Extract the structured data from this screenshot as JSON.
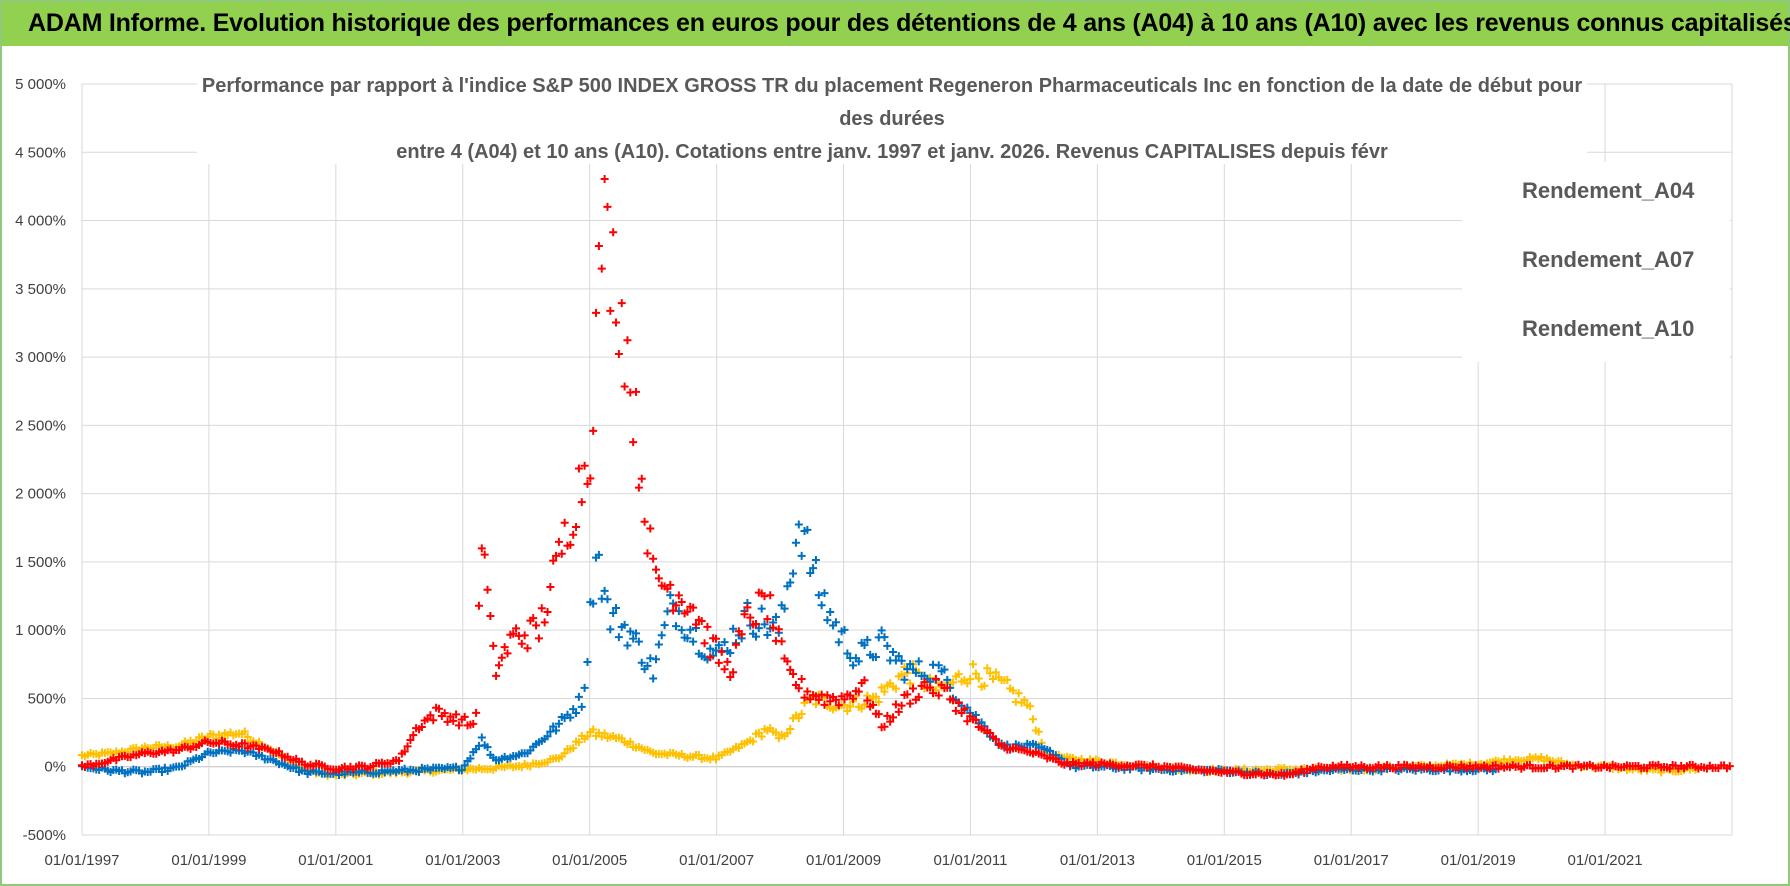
{
  "header": {
    "title": "ADAM Informe. Evolution historique des performances en euros pour des détentions de 4 ans (A04) à 10 ans (A10) avec les revenus connus capitalisés"
  },
  "colors": {
    "header_bg": "#92d050",
    "A04": "#ffc000",
    "A07": "#0070c0",
    "A10": "#ff0000",
    "grid": "#d9d9d9"
  },
  "chart_data": {
    "type": "scatter",
    "title_lines": [
      "Performance par rapport à l'indice S&P 500 INDEX GROSS TR  du placement Regeneron Pharmaceuticals Inc en fonction de la date de début pour",
      "des durées",
      "entre 4 (A04) et 10 ans (A10). Cotations entre janv. 1997 et janv. 2026. Revenus CAPITALISES depuis févr"
    ],
    "xlabel": "",
    "ylabel": "",
    "xlim": [
      1997.0,
      2023.0
    ],
    "ylim": [
      -500,
      5000
    ],
    "y_ticks": [
      5000,
      4500,
      4000,
      3500,
      3000,
      2500,
      2000,
      1500,
      1000,
      500,
      0,
      -500
    ],
    "y_tick_labels": [
      "5 000%",
      "4 500%",
      "4 000%",
      "3 500%",
      "3 000%",
      "2 500%",
      "2 000%",
      "1 500%",
      "1 000%",
      "500%",
      "0%",
      "-500%"
    ],
    "x_ticks": [
      1997,
      1999,
      2001,
      2003,
      2005,
      2007,
      2009,
      2011,
      2013,
      2015,
      2017,
      2019,
      2021
    ],
    "x_tick_labels": [
      "01/01/1997",
      "01/01/1999",
      "01/01/2001",
      "01/01/2003",
      "01/01/2005",
      "01/01/2007",
      "01/01/2009",
      "01/01/2011",
      "01/01/2013",
      "01/01/2015",
      "01/01/2017",
      "01/01/2019",
      "01/01/2021"
    ],
    "legend_position": "top-right",
    "marker": "+",
    "series": [
      {
        "name": "Rendement_A04",
        "color": "#ffc000",
        "x": [
          1997.0,
          1997.5,
          1998.0,
          1998.5,
          1999.0,
          1999.5,
          2000.0,
          2000.5,
          2001.0,
          2001.5,
          2002.0,
          2002.5,
          2003.0,
          2003.5,
          2004.0,
          2004.5,
          2005.0,
          2005.5,
          2006.0,
          2006.5,
          2007.0,
          2007.5,
          2007.8,
          2008.0,
          2008.5,
          2009.0,
          2009.5,
          2010.0,
          2010.5,
          2011.0,
          2011.5,
          2011.9,
          2012.2,
          2012.5,
          2013.0,
          2014.0,
          2015.0,
          2016.0,
          2017.0,
          2018.0,
          2019.0,
          2019.5,
          2020.0,
          2020.5,
          2021.0,
          2021.5,
          2022.0,
          2022.5
        ],
        "y": [
          80,
          100,
          140,
          150,
          220,
          250,
          120,
          -30,
          -60,
          -50,
          -40,
          -30,
          -20,
          -10,
          10,
          60,
          250,
          200,
          100,
          80,
          60,
          180,
          280,
          200,
          500,
          450,
          500,
          700,
          550,
          700,
          600,
          450,
          100,
          60,
          40,
          -10,
          -30,
          -20,
          -20,
          0,
          20,
          50,
          60,
          10,
          0,
          -20,
          -30,
          -10
        ]
      },
      {
        "name": "Rendement_A07",
        "color": "#0070c0",
        "x": [
          1997.0,
          1997.5,
          1998.0,
          1998.5,
          1999.0,
          1999.5,
          2000.0,
          2000.5,
          2001.0,
          2001.5,
          2002.0,
          2002.5,
          2003.0,
          2003.3,
          2003.5,
          2004.0,
          2004.5,
          2004.9,
          2005.1,
          2005.3,
          2005.6,
          2006.0,
          2006.3,
          2006.6,
          2007.0,
          2007.5,
          2008.0,
          2008.3,
          2008.6,
          2008.9,
          2009.2,
          2009.6,
          2010.0,
          2010.5,
          2011.0,
          2011.5,
          2012.0,
          2012.3,
          2012.6,
          2013.0,
          2014.0,
          2015.0,
          2015.8,
          2016.5,
          2017.0,
          2018.0,
          2019.0,
          2019.3
        ],
        "y": [
          0,
          -30,
          -40,
          -10,
          100,
          120,
          50,
          -40,
          -50,
          -40,
          -30,
          -20,
          -10,
          200,
          50,
          100,
          300,
          500,
          1600,
          1100,
          1000,
          700,
          1200,
          1000,
          800,
          1100,
          1000,
          1800,
          1300,
          1000,
          800,
          900,
          700,
          700,
          400,
          150,
          150,
          100,
          0,
          0,
          -20,
          -30,
          -60,
          -30,
          -20,
          -20,
          -20,
          -20
        ]
      },
      {
        "name": "Rendement_A10",
        "color": "#ff0000",
        "x": [
          1997.0,
          1997.5,
          1998.0,
          1998.5,
          1999.0,
          1999.5,
          2000.0,
          2000.5,
          2001.0,
          2001.5,
          2002.0,
          2002.3,
          2002.6,
          2002.9,
          2003.2,
          2003.3,
          2003.5,
          2003.8,
          2004.2,
          2004.5,
          2004.8,
          2005.0,
          2005.2,
          2005.4,
          2005.6,
          2005.8,
          2006.0,
          2006.3,
          2006.6,
          2006.9,
          2007.2,
          2007.5,
          2007.8,
          2008.1,
          2008.4,
          2008.7,
          2009.0,
          2009.3,
          2009.6,
          2010.0,
          2010.3,
          2010.6,
          2011.0,
          2011.5,
          2012.0,
          2012.5,
          2013.0,
          2014.0,
          2014.5,
          2015.0,
          2015.5,
          2016.0,
          2016.5,
          2017.0,
          2018.0,
          2019.0,
          2020.0,
          2021.0,
          2022.0,
          2023.0
        ],
        "y": [
          0,
          50,
          100,
          120,
          180,
          160,
          120,
          20,
          -10,
          0,
          50,
          300,
          400,
          350,
          300,
          1700,
          700,
          950,
          1000,
          1500,
          2000,
          2300,
          4000,
          3600,
          3000,
          2200,
          1400,
          1300,
          1200,
          900,
          700,
          1100,
          1200,
          700,
          550,
          500,
          500,
          600,
          300,
          500,
          600,
          550,
          350,
          150,
          100,
          20,
          20,
          0,
          -20,
          -40,
          -50,
          -60,
          0,
          0,
          0,
          0,
          0,
          0,
          0,
          0
        ]
      }
    ]
  }
}
